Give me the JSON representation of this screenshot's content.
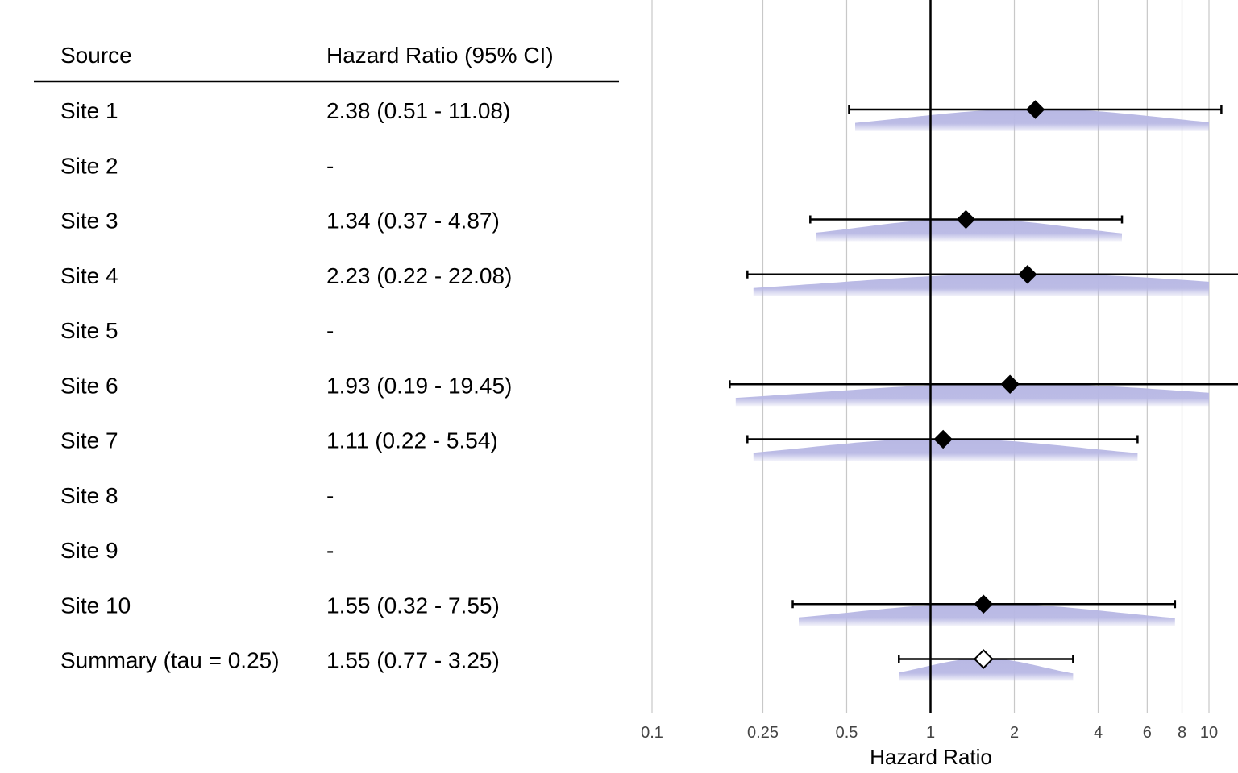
{
  "table": {
    "col_source": "Source",
    "col_ratio": "Hazard Ratio (95% CI)"
  },
  "chart_data": {
    "type": "forest",
    "xlabel": "Hazard Ratio",
    "x_scale": "log",
    "xlim": [
      0.1,
      10
    ],
    "xticks": [
      0.1,
      0.25,
      0.5,
      1,
      2,
      4,
      6,
      8,
      10
    ],
    "xtick_labels": [
      "0.1",
      "0.25",
      "0.5",
      "1",
      "2",
      "4",
      "6",
      "8",
      "10"
    ],
    "reference_line": 1,
    "grid": true,
    "rows": [
      {
        "source": "Site 1",
        "label": "2.38 (0.51 - 11.08)",
        "est": 2.38,
        "lo": 0.51,
        "hi": 11.08,
        "summary": false
      },
      {
        "source": "Site 2",
        "label": "-",
        "est": null,
        "lo": null,
        "hi": null,
        "summary": false
      },
      {
        "source": "Site 3",
        "label": "1.34 (0.37 - 4.87)",
        "est": 1.34,
        "lo": 0.37,
        "hi": 4.87,
        "summary": false
      },
      {
        "source": "Site 4",
        "label": "2.23 (0.22 - 22.08)",
        "est": 2.23,
        "lo": 0.22,
        "hi": 22.08,
        "summary": false
      },
      {
        "source": "Site 5",
        "label": "-",
        "est": null,
        "lo": null,
        "hi": null,
        "summary": false
      },
      {
        "source": "Site 6",
        "label": "1.93 (0.19 - 19.45)",
        "est": 1.93,
        "lo": 0.19,
        "hi": 19.45,
        "summary": false
      },
      {
        "source": "Site 7",
        "label": "1.11 (0.22 - 5.54)",
        "est": 1.11,
        "lo": 0.22,
        "hi": 5.54,
        "summary": false
      },
      {
        "source": "Site 8",
        "label": "-",
        "est": null,
        "lo": null,
        "hi": null,
        "summary": false
      },
      {
        "source": "Site 9",
        "label": "-",
        "est": null,
        "lo": null,
        "hi": null,
        "summary": false
      },
      {
        "source": "Site 10",
        "label": "1.55 (0.32 - 7.55)",
        "est": 1.55,
        "lo": 0.32,
        "hi": 7.55,
        "summary": false
      },
      {
        "source": "Summary (tau = 0.25)",
        "label": "1.55 (0.77 - 3.25)",
        "est": 1.55,
        "lo": 0.77,
        "hi": 3.25,
        "summary": true
      }
    ],
    "colors": {
      "density": "#b8b8e4",
      "marker": "#000000",
      "summary_marker_fill": "#ffffff",
      "grid": "#c8c8c8",
      "reference": "#000000"
    }
  }
}
